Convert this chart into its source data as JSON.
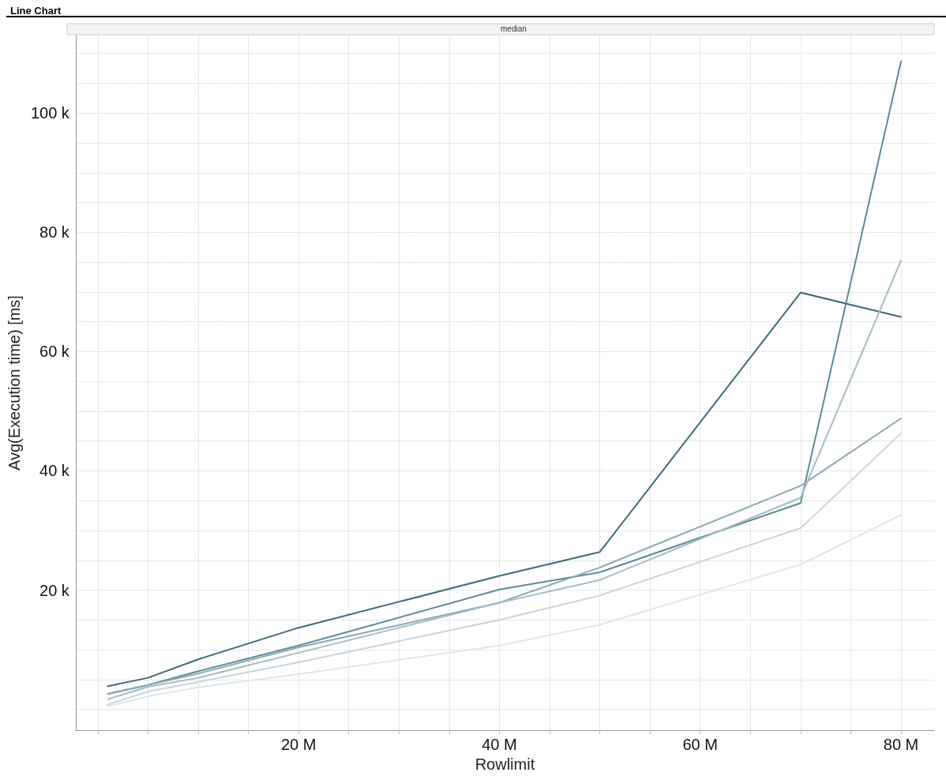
{
  "chart_data": {
    "type": "line",
    "title": "Line Chart",
    "subtitle": "median",
    "xlabel": "Rowlimit",
    "ylabel": "Avg(Execution time) [ms]",
    "x": [
      1000000,
      5000000,
      10000000,
      20000000,
      40000000,
      50000000,
      70000000,
      80000000
    ],
    "series": [
      {
        "color": "#3d6b7a",
        "values": [
          3900,
          5300,
          8400,
          13700,
          22400,
          26400,
          69900,
          65800
        ]
      },
      {
        "color": "#5f8a98",
        "values": [
          2600,
          4100,
          6400,
          10700,
          20100,
          23000,
          34600,
          108700
        ]
      },
      {
        "color": "#8aa8b4",
        "values": [
          2600,
          4100,
          6000,
          10400,
          17900,
          23800,
          37500,
          48800
        ]
      },
      {
        "color": "#a3bcc6",
        "values": [
          1700,
          3800,
          5300,
          9500,
          17900,
          21700,
          35500,
          75300
        ]
      },
      {
        "color": "#c5d4dc",
        "values": [
          800,
          3000,
          4600,
          7900,
          15000,
          19100,
          30400,
          46300
        ]
      },
      {
        "color": "#dde6ee",
        "values": [
          500,
          2200,
          3700,
          5900,
          10700,
          14200,
          24300,
          32600
        ]
      }
    ],
    "xlim": [
      -2200000,
      83300000
    ],
    "xticks": [
      {
        "value": 0,
        "label": null
      },
      {
        "value": 5000000,
        "label": null
      },
      {
        "value": 10000000,
        "label": null
      },
      {
        "value": 15000000,
        "label": null
      },
      {
        "value": 20000000,
        "label": "20 M"
      },
      {
        "value": 25000000,
        "label": null
      },
      {
        "value": 30000000,
        "label": null
      },
      {
        "value": 35000000,
        "label": null
      },
      {
        "value": 40000000,
        "label": "40 M"
      },
      {
        "value": 45000000,
        "label": null
      },
      {
        "value": 50000000,
        "label": null
      },
      {
        "value": 55000000,
        "label": null
      },
      {
        "value": 60000000,
        "label": "60 M"
      },
      {
        "value": 65000000,
        "label": null
      },
      {
        "value": 70000000,
        "label": null
      },
      {
        "value": 75000000,
        "label": null
      },
      {
        "value": 80000000,
        "label": "80 M"
      }
    ],
    "ylim": [
      -3500,
      113000
    ],
    "yticks": [
      {
        "value": 0,
        "label": null
      },
      {
        "value": 5000,
        "label": null
      },
      {
        "value": 10000,
        "label": null
      },
      {
        "value": 15000,
        "label": null
      },
      {
        "value": 20000,
        "label": "20 k"
      },
      {
        "value": 25000,
        "label": null
      },
      {
        "value": 30000,
        "label": null
      },
      {
        "value": 35000,
        "label": null
      },
      {
        "value": 40000,
        "label": "40 k"
      },
      {
        "value": 45000,
        "label": null
      },
      {
        "value": 50000,
        "label": null
      },
      {
        "value": 55000,
        "label": null
      },
      {
        "value": 60000,
        "label": "60 k"
      },
      {
        "value": 65000,
        "label": null
      },
      {
        "value": 70000,
        "label": null
      },
      {
        "value": 75000,
        "label": null
      },
      {
        "value": 80000,
        "label": "80 k"
      },
      {
        "value": 85000,
        "label": null
      },
      {
        "value": 90000,
        "label": null
      },
      {
        "value": 95000,
        "label": null
      },
      {
        "value": 100000,
        "label": "100 k"
      },
      {
        "value": 105000,
        "label": null
      },
      {
        "value": 110000,
        "label": null
      }
    ],
    "grid": true,
    "marker": "none",
    "line_style": "solid"
  }
}
